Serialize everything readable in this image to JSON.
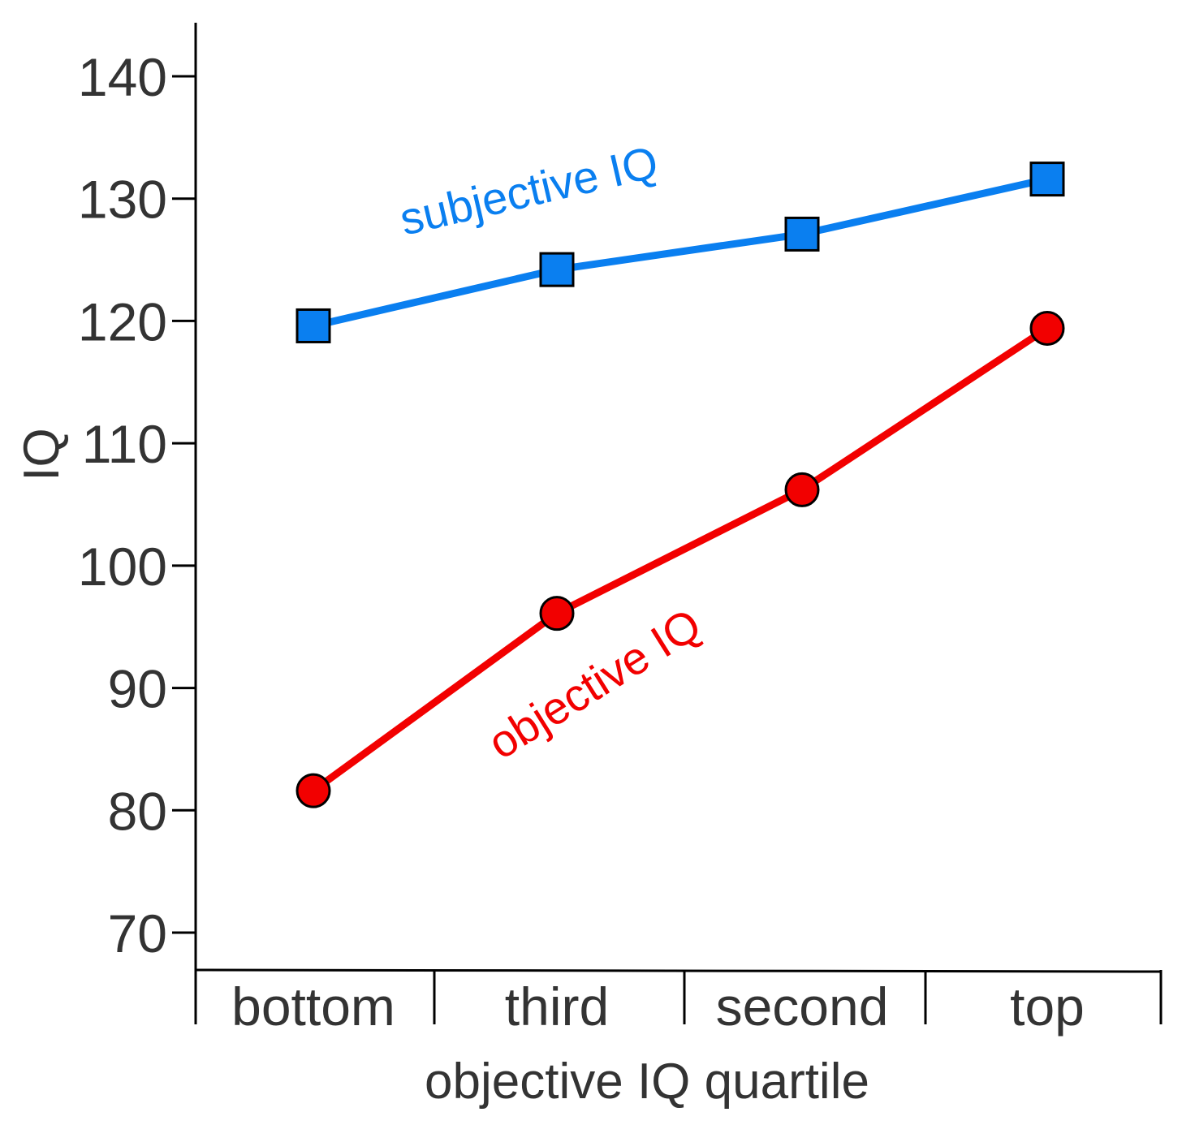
{
  "chart_data": {
    "type": "line",
    "categories": [
      "bottom",
      "third",
      "second",
      "top"
    ],
    "xlabel": "objective IQ quartile",
    "ylabel": "IQ",
    "ylim": [
      66,
      144
    ],
    "yticks": [
      70,
      80,
      90,
      100,
      110,
      120,
      130,
      140
    ],
    "grid": false,
    "series": [
      {
        "name": "subjective IQ",
        "color": "#0a7ff0",
        "marker": "square",
        "values": [
          119.6,
          124.2,
          127.1,
          131.6
        ]
      },
      {
        "name": "objective IQ",
        "color": "#f20000",
        "marker": "circle",
        "values": [
          81.6,
          96.1,
          106.2,
          119.4
        ]
      }
    ]
  }
}
